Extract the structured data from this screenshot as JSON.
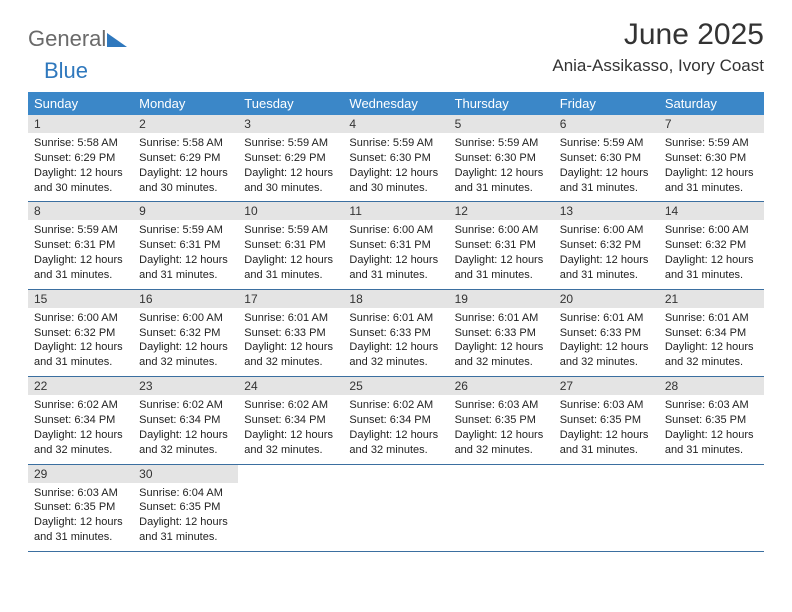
{
  "logo": {
    "part1": "General",
    "part2": "Blue"
  },
  "title": "June 2025",
  "location": "Ania-Assikasso, Ivory Coast",
  "colors": {
    "header_bg": "#3b87c8",
    "header_text": "#ffffff",
    "daynum_bg": "#e4e4e4",
    "row_border": "#3b6fa0",
    "logo_gray": "#6a6a6a",
    "logo_blue": "#2f78bd"
  },
  "weekdays": [
    "Sunday",
    "Monday",
    "Tuesday",
    "Wednesday",
    "Thursday",
    "Friday",
    "Saturday"
  ],
  "days": [
    {
      "n": "1",
      "sr": "5:58 AM",
      "ss": "6:29 PM",
      "dl": "12 hours and 30 minutes."
    },
    {
      "n": "2",
      "sr": "5:58 AM",
      "ss": "6:29 PM",
      "dl": "12 hours and 30 minutes."
    },
    {
      "n": "3",
      "sr": "5:59 AM",
      "ss": "6:29 PM",
      "dl": "12 hours and 30 minutes."
    },
    {
      "n": "4",
      "sr": "5:59 AM",
      "ss": "6:30 PM",
      "dl": "12 hours and 30 minutes."
    },
    {
      "n": "5",
      "sr": "5:59 AM",
      "ss": "6:30 PM",
      "dl": "12 hours and 31 minutes."
    },
    {
      "n": "6",
      "sr": "5:59 AM",
      "ss": "6:30 PM",
      "dl": "12 hours and 31 minutes."
    },
    {
      "n": "7",
      "sr": "5:59 AM",
      "ss": "6:30 PM",
      "dl": "12 hours and 31 minutes."
    },
    {
      "n": "8",
      "sr": "5:59 AM",
      "ss": "6:31 PM",
      "dl": "12 hours and 31 minutes."
    },
    {
      "n": "9",
      "sr": "5:59 AM",
      "ss": "6:31 PM",
      "dl": "12 hours and 31 minutes."
    },
    {
      "n": "10",
      "sr": "5:59 AM",
      "ss": "6:31 PM",
      "dl": "12 hours and 31 minutes."
    },
    {
      "n": "11",
      "sr": "6:00 AM",
      "ss": "6:31 PM",
      "dl": "12 hours and 31 minutes."
    },
    {
      "n": "12",
      "sr": "6:00 AM",
      "ss": "6:31 PM",
      "dl": "12 hours and 31 minutes."
    },
    {
      "n": "13",
      "sr": "6:00 AM",
      "ss": "6:32 PM",
      "dl": "12 hours and 31 minutes."
    },
    {
      "n": "14",
      "sr": "6:00 AM",
      "ss": "6:32 PM",
      "dl": "12 hours and 31 minutes."
    },
    {
      "n": "15",
      "sr": "6:00 AM",
      "ss": "6:32 PM",
      "dl": "12 hours and 31 minutes."
    },
    {
      "n": "16",
      "sr": "6:00 AM",
      "ss": "6:32 PM",
      "dl": "12 hours and 32 minutes."
    },
    {
      "n": "17",
      "sr": "6:01 AM",
      "ss": "6:33 PM",
      "dl": "12 hours and 32 minutes."
    },
    {
      "n": "18",
      "sr": "6:01 AM",
      "ss": "6:33 PM",
      "dl": "12 hours and 32 minutes."
    },
    {
      "n": "19",
      "sr": "6:01 AM",
      "ss": "6:33 PM",
      "dl": "12 hours and 32 minutes."
    },
    {
      "n": "20",
      "sr": "6:01 AM",
      "ss": "6:33 PM",
      "dl": "12 hours and 32 minutes."
    },
    {
      "n": "21",
      "sr": "6:01 AM",
      "ss": "6:34 PM",
      "dl": "12 hours and 32 minutes."
    },
    {
      "n": "22",
      "sr": "6:02 AM",
      "ss": "6:34 PM",
      "dl": "12 hours and 32 minutes."
    },
    {
      "n": "23",
      "sr": "6:02 AM",
      "ss": "6:34 PM",
      "dl": "12 hours and 32 minutes."
    },
    {
      "n": "24",
      "sr": "6:02 AM",
      "ss": "6:34 PM",
      "dl": "12 hours and 32 minutes."
    },
    {
      "n": "25",
      "sr": "6:02 AM",
      "ss": "6:34 PM",
      "dl": "12 hours and 32 minutes."
    },
    {
      "n": "26",
      "sr": "6:03 AM",
      "ss": "6:35 PM",
      "dl": "12 hours and 32 minutes."
    },
    {
      "n": "27",
      "sr": "6:03 AM",
      "ss": "6:35 PM",
      "dl": "12 hours and 31 minutes."
    },
    {
      "n": "28",
      "sr": "6:03 AM",
      "ss": "6:35 PM",
      "dl": "12 hours and 31 minutes."
    },
    {
      "n": "29",
      "sr": "6:03 AM",
      "ss": "6:35 PM",
      "dl": "12 hours and 31 minutes."
    },
    {
      "n": "30",
      "sr": "6:04 AM",
      "ss": "6:35 PM",
      "dl": "12 hours and 31 minutes."
    }
  ],
  "labels": {
    "sunrise": "Sunrise:",
    "sunset": "Sunset:",
    "daylight": "Daylight:"
  }
}
